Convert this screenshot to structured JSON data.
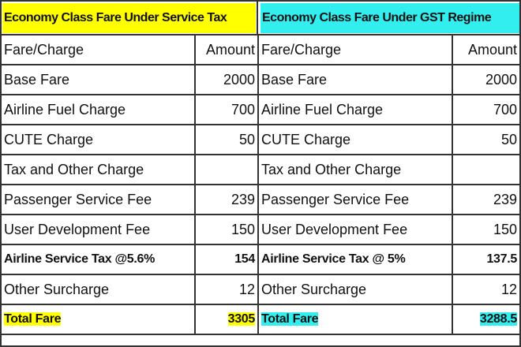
{
  "tables": [
    {
      "title": "Economy Class Fare Under Service Tax",
      "title_color": "#ffff00",
      "headers": [
        "Fare/Charge",
        "Amount"
      ],
      "rows": [
        {
          "label": "Base Fare",
          "amount": "2000"
        },
        {
          "label": "Airline Fuel Charge",
          "amount": "700"
        },
        {
          "label": "CUTE Charge",
          "amount": "50"
        },
        {
          "label": "Tax and Other Charge",
          "amount": ""
        },
        {
          "label": "Passenger Service Fee",
          "amount": "239"
        },
        {
          "label": "User Development Fee",
          "amount": "150"
        },
        {
          "label": "Airline Service Tax @5.6%",
          "amount": "154",
          "bold": true
        },
        {
          "label": "Other Surcharge",
          "amount": "12"
        },
        {
          "label": "Total Fare",
          "amount": "3305",
          "bold": true,
          "highlight": true
        }
      ]
    },
    {
      "title": "Economy Class Fare Under GST Regime",
      "title_color": "#33eeee",
      "headers": [
        "Fare/Charge",
        "Amount"
      ],
      "rows": [
        {
          "label": "Base Fare",
          "amount": "2000"
        },
        {
          "label": "Airline Fuel Charge",
          "amount": "700"
        },
        {
          "label": "CUTE Charge",
          "amount": "50"
        },
        {
          "label": "Tax and Other Charge",
          "amount": ""
        },
        {
          "label": "Passenger Service Fee",
          "amount": "239"
        },
        {
          "label": "User Development Fee",
          "amount": "150"
        },
        {
          "label": "Airline Service Tax @ 5%",
          "amount": "137.5",
          "bold": true
        },
        {
          "label": "Other Surcharge",
          "amount": "12"
        },
        {
          "label": "Total Fare",
          "amount": "3288.5",
          "bold": true,
          "highlight": true
        }
      ]
    }
  ]
}
